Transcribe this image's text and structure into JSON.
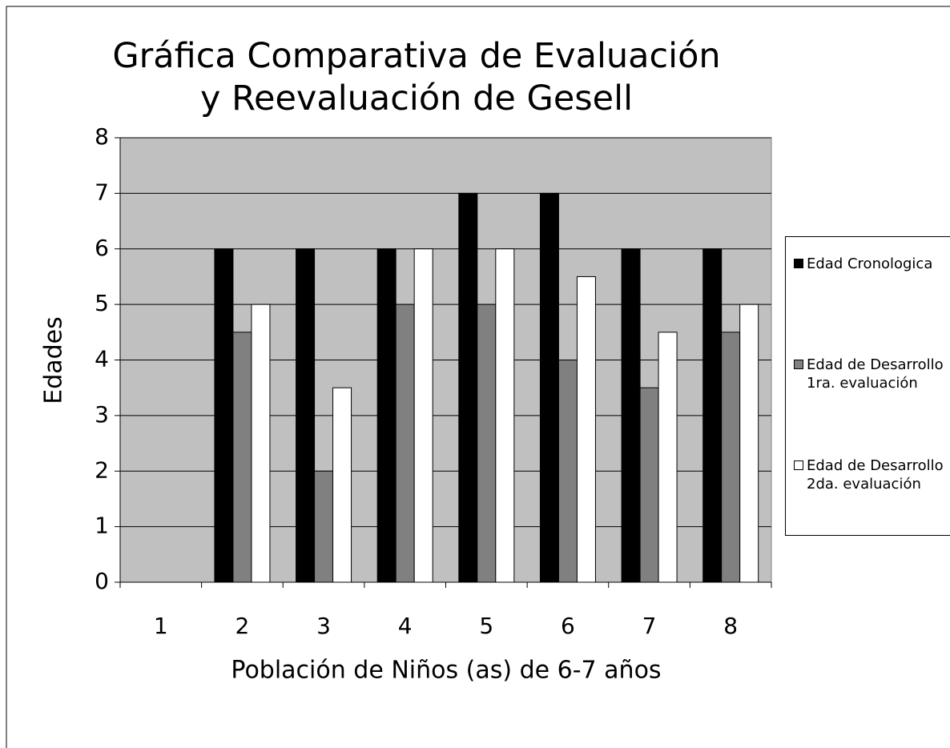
{
  "chart_data": {
    "type": "bar",
    "title": "Gráfica Comparativa de Evaluación y Reevaluación de Gesell",
    "x_label": "Población de Niños (as) de 6-7 años",
    "y_label": "Edades",
    "categories": [
      "1",
      "2",
      "3",
      "4",
      "5",
      "6",
      "7",
      "8"
    ],
    "series": [
      {
        "name": "Edad Cronologica",
        "color": "#000000",
        "values": [
          null,
          6,
          6,
          6,
          7,
          7,
          6,
          6
        ]
      },
      {
        "name": "Edad de Desarrollo 1ra. evaluación",
        "color": "#808080",
        "values": [
          null,
          4.5,
          2,
          5,
          5,
          4,
          3.5,
          4.5
        ]
      },
      {
        "name": "Edad de Desarrollo 2da. evaluación",
        "color": "#ffffff",
        "values": [
          null,
          5,
          3.5,
          6,
          6,
          5.5,
          4.5,
          5
        ]
      }
    ],
    "ylim": [
      0,
      8
    ],
    "yticks": [
      0,
      1,
      2,
      3,
      4,
      5,
      6,
      7,
      8
    ],
    "grid": true,
    "legend": "right"
  }
}
